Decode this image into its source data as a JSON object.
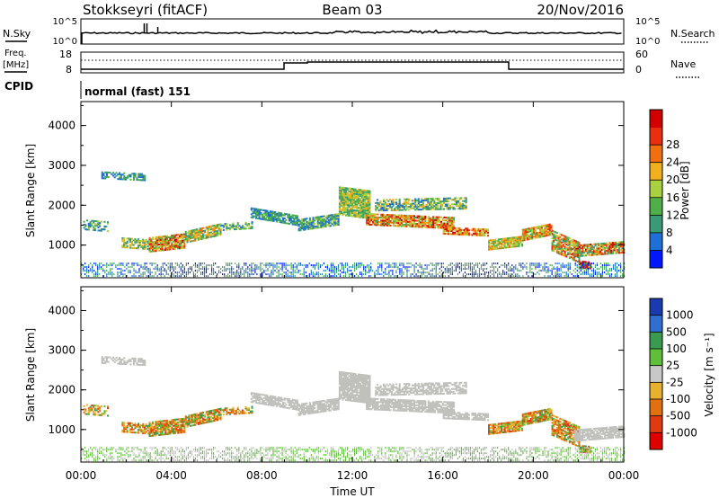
{
  "header": {
    "site": "Stokkseyri (fitACF)",
    "beam": "Beam 03",
    "date": "20/Nov/2016"
  },
  "top_panel": {
    "nsky_label": "N.Sky",
    "nsearch_label": "N.Search",
    "left_ticks": [
      "10^5",
      "10^0"
    ],
    "right_ticks": [
      "10^5",
      "10^0"
    ]
  },
  "freq_panel": {
    "freq_label": "Freq.",
    "freq_unit": "[MHz]",
    "nave_label": "Nave",
    "left_ticks": [
      "18",
      "8"
    ],
    "right_ticks": [
      "60",
      "0"
    ]
  },
  "cpid": {
    "label": "CPID",
    "value": "normal (fast) 151"
  },
  "colors": {
    "power_scale": [
      "#0018ff",
      "#1e6fd6",
      "#3a9a78",
      "#4fb04a",
      "#a9d040",
      "#f0b020",
      "#f07010",
      "#e83010",
      "#d00000"
    ],
    "velocity_scale": [
      "#1a3ab0",
      "#2f6fd0",
      "#3a9a50",
      "#5fbf3a",
      "#c8c8c8",
      "#e8b030",
      "#e07010",
      "#e03a10",
      "#e00000"
    ],
    "ground_scatter": "#c0c0bc"
  },
  "chart_data": [
    {
      "type": "heatmap",
      "panel": "power",
      "xlabel": "Time UT",
      "ylabel": "Slant Range [km]",
      "x_ticks": [
        "00:00",
        "04:00",
        "08:00",
        "12:00",
        "16:00",
        "20:00",
        "00:00"
      ],
      "y_ticks": [
        "1000",
        "2000",
        "3000",
        "4000"
      ],
      "xlim": [
        0,
        24
      ],
      "ylim": [
        180,
        4600
      ],
      "colorbar": {
        "label": "Power [dB]",
        "ticks": [
          "4",
          "8",
          "12",
          "16",
          "20",
          "24",
          "28"
        ],
        "range": [
          0,
          30
        ]
      }
    },
    {
      "type": "heatmap",
      "panel": "velocity",
      "xlabel": "Time UT",
      "ylabel": "Slant Range [km]",
      "x_ticks": [
        "00:00",
        "04:00",
        "08:00",
        "12:00",
        "16:00",
        "20:00",
        "00:00"
      ],
      "y_ticks": [
        "1000",
        "2000",
        "3000",
        "4000"
      ],
      "xlim": [
        0,
        24
      ],
      "ylim": [
        180,
        4600
      ],
      "colorbar": {
        "label": "Velocity [m s⁻¹]",
        "ticks": [
          "1000",
          "500",
          "100",
          "25",
          "-25",
          "-100",
          "-500",
          "-1000"
        ],
        "range": [
          -1000,
          1000
        ]
      },
      "ground_scatter_note": "grey"
    }
  ]
}
